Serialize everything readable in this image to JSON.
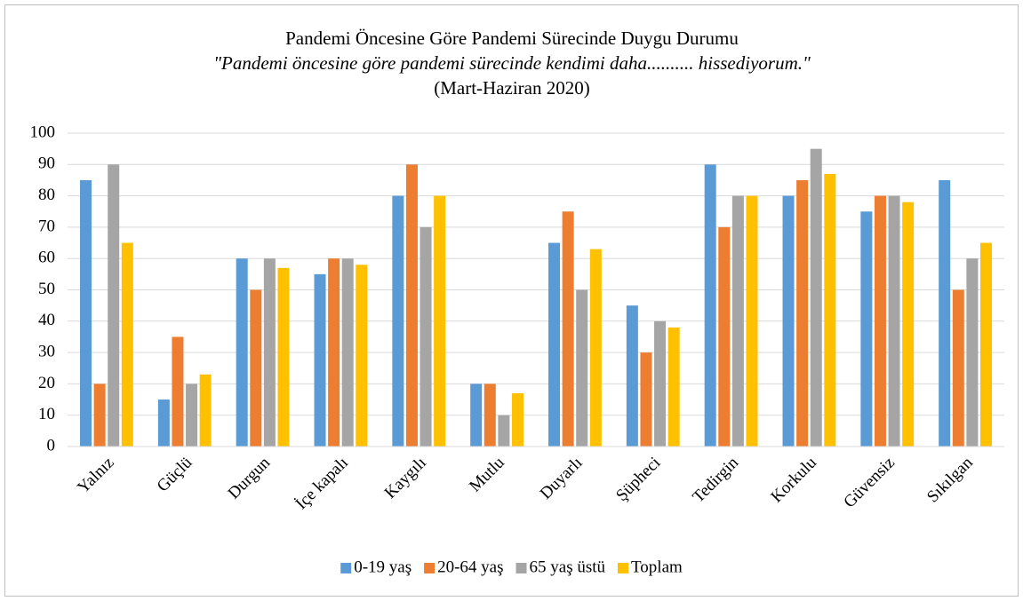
{
  "chart_data": {
    "type": "bar",
    "title": "Pandemi Öncesine Göre Pandemi Sürecinde Duygu Durumu",
    "subtitle": "\"Pandemi öncesine göre pandemi sürecinde kendimi daha.......... hissediyorum.\"",
    "period": "(Mart-Haziran 2020)",
    "categories": [
      "Yalnız",
      "Güçlü",
      "Durgun",
      "İçe kapalı",
      "Kaygılı",
      "Mutlu",
      "Duyarlı",
      "Şüpheci",
      "Tedirgin",
      "Korkulu",
      "Güvensiz",
      "Sıkılgan"
    ],
    "series": [
      {
        "name": "0-19 yaş",
        "color": "#5b9bd5",
        "values": [
          85,
          15,
          60,
          55,
          80,
          20,
          65,
          45,
          90,
          80,
          75,
          85
        ]
      },
      {
        "name": "20-64 yaş",
        "color": "#ed7d31",
        "values": [
          20,
          35,
          50,
          60,
          90,
          20,
          75,
          30,
          70,
          85,
          80,
          50
        ]
      },
      {
        "name": "65 yaş üstü",
        "color": "#a5a5a5",
        "values": [
          90,
          20,
          60,
          60,
          70,
          10,
          50,
          40,
          80,
          95,
          80,
          60
        ]
      },
      {
        "name": "Toplam",
        "color": "#ffc000",
        "values": [
          65,
          23,
          57,
          58,
          80,
          17,
          63,
          38,
          80,
          87,
          78,
          65
        ]
      }
    ],
    "ylim": [
      0,
      100
    ],
    "yticks": [
      0,
      10,
      20,
      30,
      40,
      50,
      60,
      70,
      80,
      90,
      100
    ],
    "grid": true,
    "legend": "bottom"
  }
}
